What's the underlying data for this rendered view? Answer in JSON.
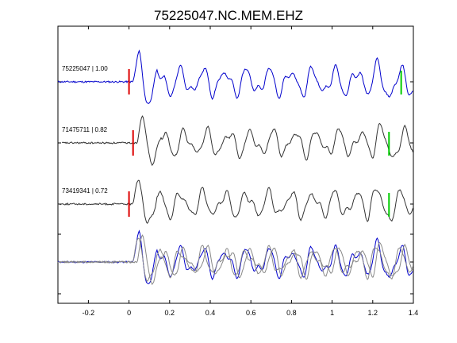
{
  "chart_data": {
    "type": "line",
    "title": "75225047.NC.MEM.EHZ",
    "xlabel": "",
    "ylabel": "",
    "xlim": [
      -0.35,
      1.4
    ],
    "xticks": [
      -0.2,
      0,
      0.2,
      0.4,
      0.6,
      0.8,
      1,
      1.2,
      1.4
    ],
    "xtick_labels": [
      "-0.2",
      "0",
      "0.2",
      "0.4",
      "0.6",
      "0.8",
      "1",
      "1.2",
      "1.4"
    ],
    "grid": false,
    "colors": {
      "reference": "#0000cc",
      "other": "#333333",
      "overlay_other": "#888888",
      "pick_start": "#dd0000",
      "pick_end": "#00cc00"
    },
    "traces": [
      {
        "label": "75225047 | 1.00",
        "color": "reference",
        "start_pick": 0.0,
        "end_pick": 1.34,
        "dx": 0.0
      },
      {
        "label": "71475711 | 0.82",
        "color": "other",
        "start_pick": 0.02,
        "end_pick": 1.28,
        "dx": 0.02
      },
      {
        "label": "73419341 | 0.72",
        "color": "other",
        "start_pick": 0.0,
        "end_pick": 1.28,
        "dx": 0.0
      }
    ],
    "overlay": {
      "label": "",
      "note": ""
    }
  }
}
